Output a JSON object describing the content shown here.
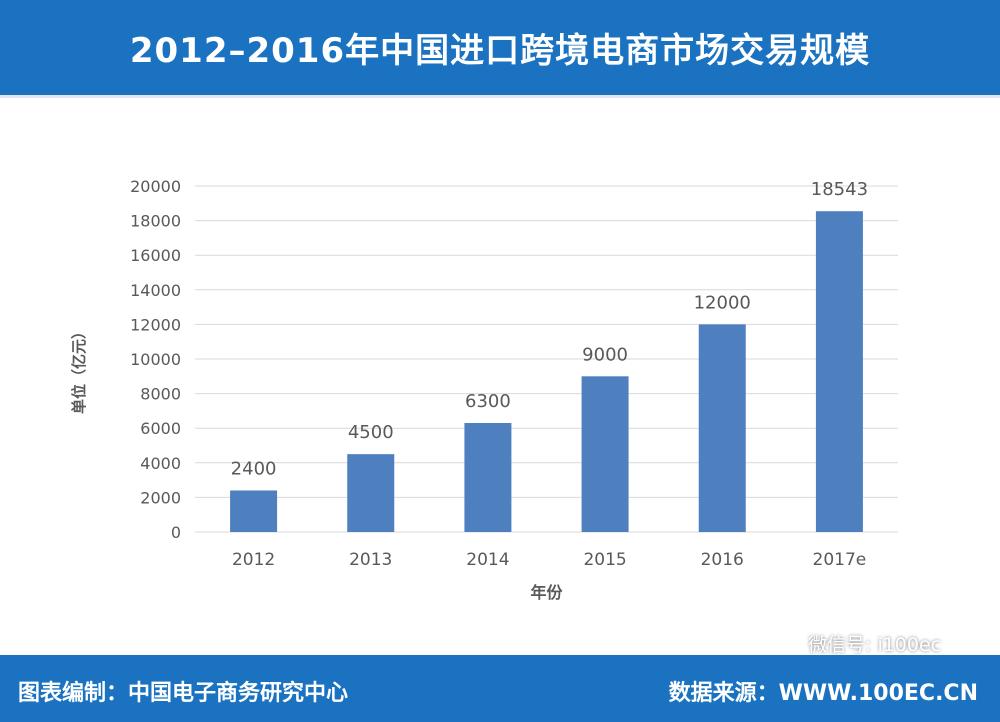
{
  "header": {
    "title": "2012–2016年中国进口跨境电商市场交易规模"
  },
  "footer": {
    "credit": "图表编制：中国电子商务研究中心",
    "source": "数据来源：WWW.100EC.CN"
  },
  "watermark": {
    "text": "微信号: i100ec",
    "icon": "wechat-icon"
  },
  "colors": {
    "accent": "#1a72c0",
    "bar": "#4e7fbf"
  },
  "chart_data": {
    "type": "bar",
    "categories": [
      "2012",
      "2013",
      "2014",
      "2015",
      "2016",
      "2017e"
    ],
    "values": [
      2400,
      4500,
      6300,
      9000,
      12000,
      18543
    ],
    "data_labels": [
      "2400",
      "4500",
      "6300",
      "9000",
      "12000",
      "18543"
    ],
    "yticks": [
      "0",
      "2000",
      "4000",
      "6000",
      "8000",
      "10000",
      "12000",
      "14000",
      "16000",
      "18000",
      "20000"
    ],
    "xlabel": "年份",
    "ylabel": "单位（亿元）",
    "ylim": [
      0,
      20000
    ],
    "grid": true
  }
}
